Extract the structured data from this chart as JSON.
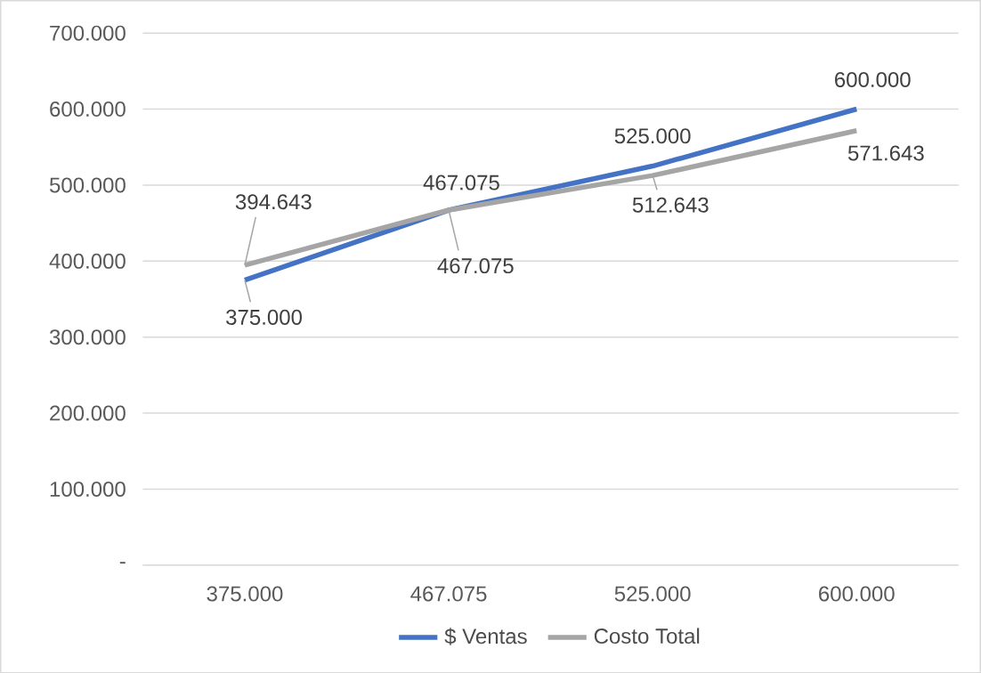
{
  "chart_data": {
    "type": "line",
    "categories": [
      "375.000",
      "467.075",
      "525.000",
      "600.000"
    ],
    "series": [
      {
        "name": "$ Ventas",
        "color": "#4472c4",
        "values": [
          375000,
          467075,
          525000,
          600000
        ],
        "value_labels": [
          "375.000",
          "467.075",
          "525.000",
          "600.000"
        ]
      },
      {
        "name": "Costo Total",
        "color": "#a5a5a5",
        "values": [
          394643,
          467075,
          512643,
          571643
        ],
        "value_labels": [
          "394.643",
          "467.075",
          "512.643",
          "571.643"
        ]
      }
    ],
    "ylim": [
      0,
      700000
    ],
    "yticks": [
      {
        "value": 0,
        "label": "-"
      },
      {
        "value": 100000,
        "label": "100.000"
      },
      {
        "value": 200000,
        "label": "200.000"
      },
      {
        "value": 300000,
        "label": "300.000"
      },
      {
        "value": 400000,
        "label": "400.000"
      },
      {
        "value": 500000,
        "label": "500.000"
      },
      {
        "value": 600000,
        "label": "600.000"
      },
      {
        "value": 700000,
        "label": "700.000"
      }
    ],
    "grid": "y",
    "legend": "bottom"
  }
}
